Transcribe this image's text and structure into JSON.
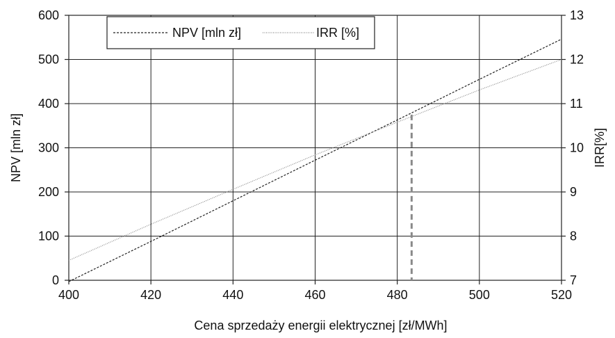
{
  "chart_data": {
    "type": "line",
    "xlabel": "Cena sprzedaży energii elektrycznej [zł/MWh]",
    "ylabel_left": "NPV [mln zł]",
    "ylabel_right": "IRR[%]",
    "xlim": [
      400,
      520
    ],
    "ylim_left": [
      0,
      600
    ],
    "ylim_right": [
      7,
      13
    ],
    "x_ticks": [
      400,
      420,
      440,
      460,
      480,
      500,
      520
    ],
    "y_left_ticks": [
      0,
      100,
      200,
      300,
      400,
      500,
      600
    ],
    "y_right_ticks": [
      7,
      8,
      9,
      10,
      11,
      12,
      13
    ],
    "grid": true,
    "legend_position": "top-left",
    "series": [
      {
        "name": "NPV [mln zł]",
        "axis": "left",
        "style": "dashed",
        "color": "#222222",
        "x": [
          400,
          420,
          440,
          460,
          480,
          500,
          520
        ],
        "y": [
          -3,
          88,
          180,
          272,
          363,
          455,
          546
        ]
      },
      {
        "name": "IRR [%]",
        "axis": "right",
        "style": "dotted",
        "color": "#888888",
        "x": [
          400,
          420,
          440,
          460,
          480,
          500,
          520
        ],
        "y": [
          7.45,
          8.27,
          9.06,
          9.84,
          10.58,
          11.31,
          12.0
        ]
      }
    ],
    "marker_line": {
      "x": 483.5,
      "y_top": 375,
      "style": "dashed",
      "color": "#8a8a8a"
    }
  }
}
